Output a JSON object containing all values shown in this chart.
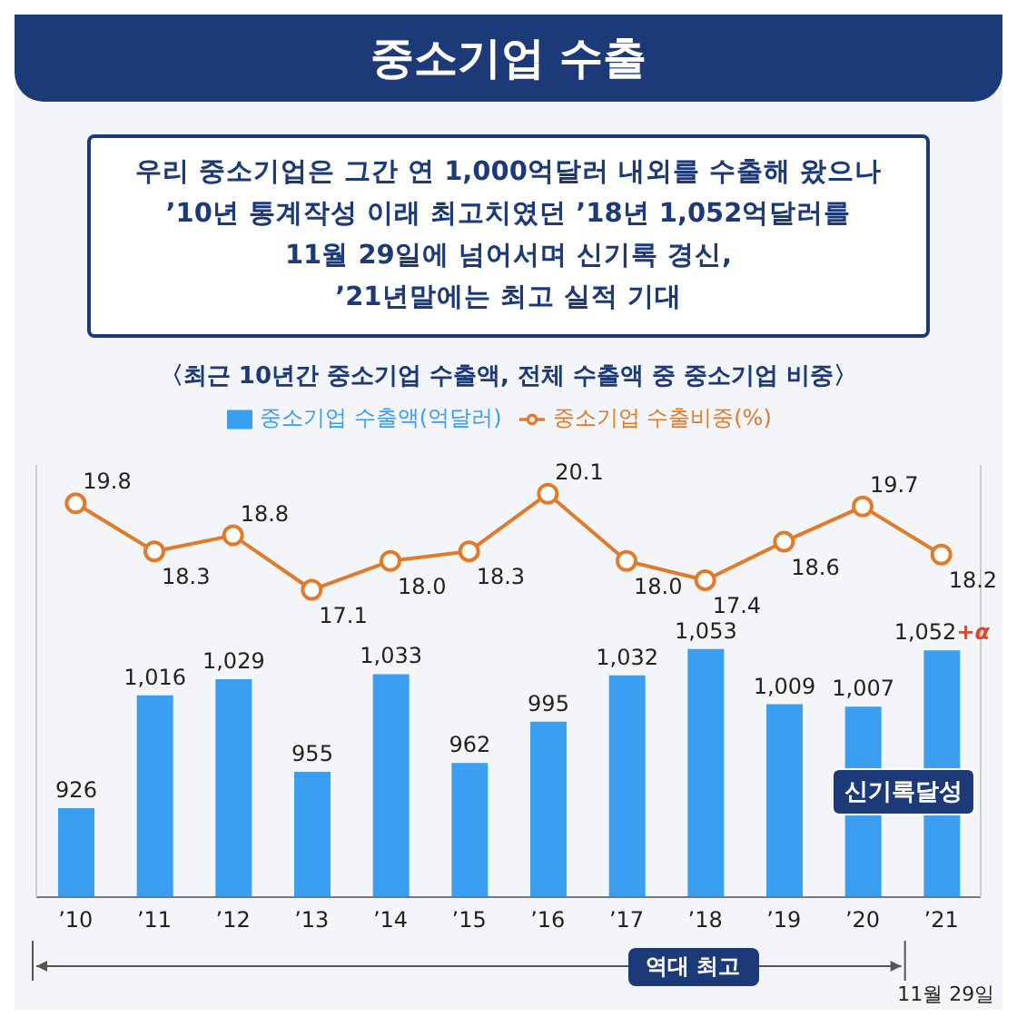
{
  "chart_data": {
    "type": "bar",
    "title": "중소기업 수출",
    "subtitle": "우리 중소기업은 그간 연 1,000억달러 내외를 수출해 왔으나\n’10년 통계작성 이래 최고치였던 ’18년 1,052억달러를\n11월 29일에 넘어서며 신기록 경신,\n’21년말에는 최고 실적 기대",
    "categories": [
      "’10",
      "’11",
      "’12",
      "’13",
      "’14",
      "’15",
      "’16",
      "’17",
      "’18",
      "’19",
      "’20",
      "’21"
    ],
    "series": [
      {
        "name": "중소기업 수출액(억달러)",
        "color": "#3a9ff0",
        "values": [
          926,
          1016,
          1029,
          955,
          1033,
          962,
          995,
          1032,
          1053,
          1009,
          1007,
          1052
        ],
        "value_labels": [
          "926",
          "1,016",
          "1,029",
          "955",
          "1,033",
          "962",
          "995",
          "1,032",
          "1,053",
          "1,009",
          "1,007",
          "1,052"
        ]
      },
      {
        "name": "중소기업 수출비중(%)",
        "type": "line",
        "axis": "y2",
        "color": "#e07b2c",
        "values": [
          19.8,
          18.3,
          18.8,
          17.1,
          18.0,
          18.3,
          20.1,
          18.0,
          17.4,
          18.6,
          19.7,
          18.2
        ],
        "value_labels": [
          "19.8",
          "18.3",
          "18.8",
          "17.1",
          "18.0",
          "18.3",
          "20.1",
          "18.0",
          "17.4",
          "18.6",
          "19.7",
          "18.2"
        ]
      }
    ],
    "ylim": [
      855,
      1200
    ],
    "y2lim": [
      7.5,
      21
    ],
    "tick_labels": "x",
    "marker": "circle",
    "legend": "top",
    "grid": false,
    "annotations": [
      "〈최근 10년간 중소기업 수출액, 전체 수출액 중 중소기업 비중〉",
      "신기록달성",
      "역대 최고",
      "11월 29일",
      {
        "text": "+α",
        "x": "’21",
        "y": 1052
      }
    ]
  }
}
